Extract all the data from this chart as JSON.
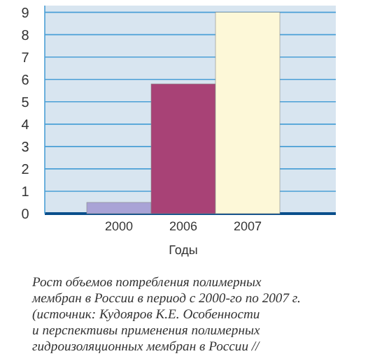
{
  "chart_data": {
    "type": "bar",
    "xlabel": "Годы",
    "categories": [
      "2000",
      "2006",
      "2007"
    ],
    "values": [
      0.5,
      5.8,
      9.0
    ],
    "colors": [
      "#a9a3d6",
      "#a84276",
      "#fdf8d8"
    ],
    "ylim": [
      0,
      9.3
    ],
    "yticks": [
      0,
      1,
      2,
      3,
      4,
      5,
      6,
      7,
      8,
      9
    ],
    "grid": "y",
    "annotations": [
      "Рост объемов потребления полимерных\nмембран в России в период с 2000-го по 2007 г.\n(источник: Кудояров К.Е. Особенности\nи перспективы применения полимерных\nгидроизоляционных мембран в России //"
    ]
  }
}
